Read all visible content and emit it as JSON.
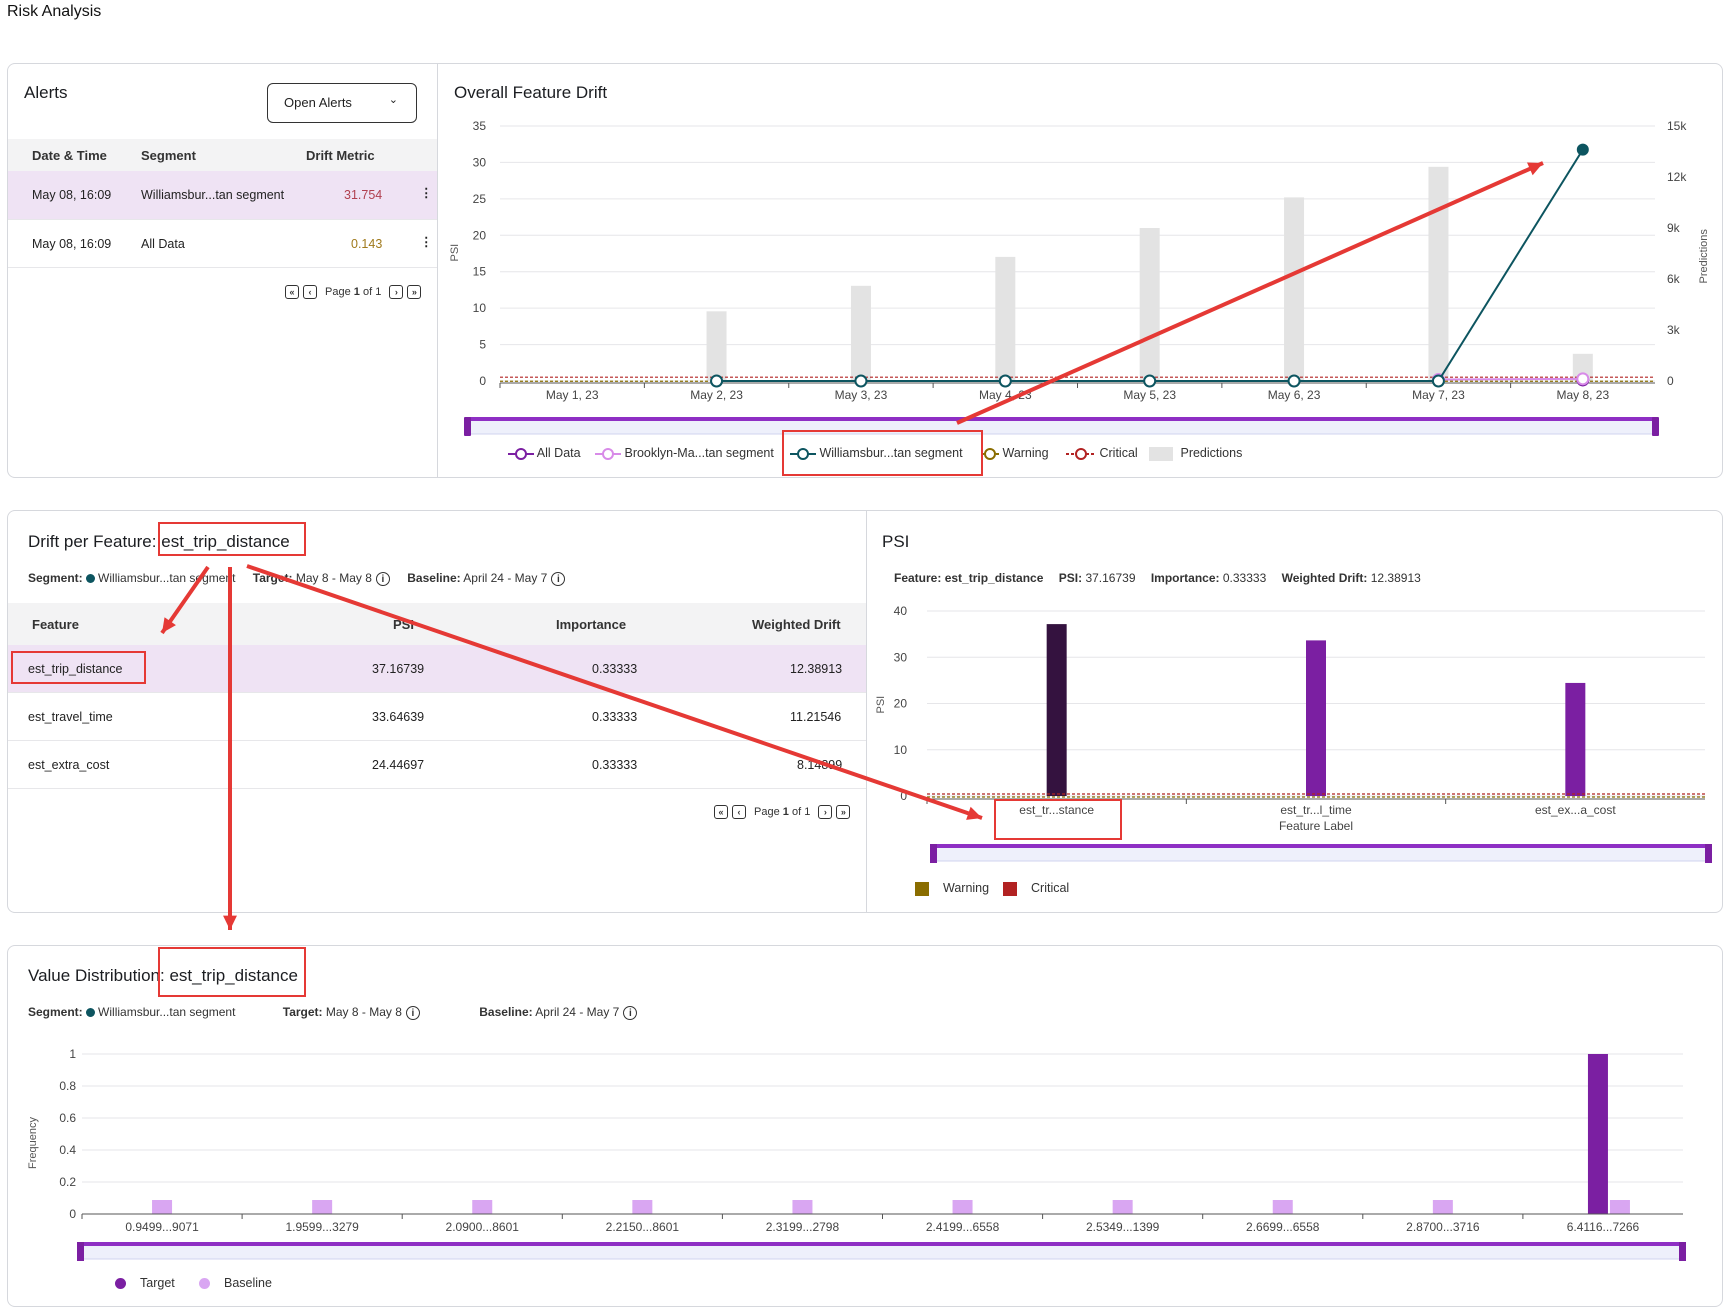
{
  "page": {
    "title": "Risk Analysis"
  },
  "alerts": {
    "title": "Alerts",
    "dropdown": "Open Alerts",
    "columns": [
      "Date & Time",
      "Segment",
      "Drift Metric"
    ],
    "rows": [
      {
        "date": "May 08, 16:09",
        "segment": "Williamsbur...tan segment",
        "metric": "31.754",
        "metric_color": "#b0404f"
      },
      {
        "date": "May 08, 16:09",
        "segment": "All Data",
        "metric": "0.143",
        "metric_color": "#a07a1c"
      }
    ],
    "pager": {
      "prefix": "Page",
      "current": "1",
      "sep": "of",
      "total": "1"
    }
  },
  "drift_chart": {
    "title": "Overall Feature Drift",
    "y_label": "PSI",
    "y2_label": "Predictions",
    "y_ticks": [
      "35",
      "30",
      "25",
      "20",
      "15",
      "10",
      "5",
      "0"
    ],
    "y2_ticks": [
      "15k",
      "12k",
      "9k",
      "6k",
      "3k",
      "0"
    ],
    "x_ticks": [
      "May 1, 23",
      "May 2, 23",
      "May 3, 23",
      "May 4, 23",
      "May 5, 23",
      "May 6, 23",
      "May 7, 23",
      "May 8, 23"
    ],
    "legend": [
      "All Data",
      "Brooklyn-Ma...tan segment",
      "Williamsbur...tan segment",
      "Warning",
      "Critical",
      "Predictions"
    ],
    "colors": {
      "all_data": "#7b1fa2",
      "brooklyn": "#d88be8",
      "williamsburg": "#0d5560",
      "warning": "#8a6d00",
      "critical": "#b22222",
      "predictions": "#e3e3e3"
    }
  },
  "drift_per_feature": {
    "title_prefix": "Drift per Feature:",
    "feature": "est_trip_distance",
    "segment_label": "Segment:",
    "segment": "Williamsbur...tan segment",
    "target_label": "Target:",
    "target": "May 8 - May 8",
    "baseline_label": "Baseline:",
    "baseline": "April 24 - May 7",
    "columns": [
      "Feature",
      "PSI",
      "Importance",
      "Weighted Drift"
    ],
    "rows": [
      {
        "feature": "est_trip_distance",
        "psi": "37.16739",
        "importance": "0.33333",
        "weighted": "12.38913"
      },
      {
        "feature": "est_travel_time",
        "psi": "33.64639",
        "importance": "0.33333",
        "weighted": "11.21546"
      },
      {
        "feature": "est_extra_cost",
        "psi": "24.44697",
        "importance": "0.33333",
        "weighted": "8.14899"
      }
    ],
    "pager": {
      "prefix": "Page",
      "current": "1",
      "sep": "of",
      "total": "1"
    }
  },
  "psi_panel": {
    "title": "PSI",
    "feature_label": "Feature:",
    "feature": "est_trip_distance",
    "psi_label": "PSI:",
    "psi": "37.16739",
    "importance_label": "Importance:",
    "importance": "0.33333",
    "weighted_label": "Weighted Drift:",
    "weighted": "12.38913",
    "legend": [
      "Warning",
      "Critical"
    ],
    "colors": {
      "selected": "#34123f",
      "bar": "#7b1fa2",
      "warning": "#8a6d00",
      "critical": "#b22222"
    }
  },
  "value_dist": {
    "title_prefix": "Value Distribution:",
    "feature": "est_trip_distance",
    "segment_label": "Segment:",
    "segment": "Williamsbur...tan segment",
    "target_label": "Target:",
    "target": "May 8 - May 8",
    "baseline_label": "Baseline:",
    "baseline": "April 24 - May 7",
    "legend": [
      "Target",
      "Baseline"
    ],
    "colors": {
      "target": "#7b1fa2",
      "baseline": "#d9a6f2"
    }
  },
  "chart_data": [
    {
      "type": "bar",
      "title": "Overall Feature Drift",
      "xlabel": "",
      "ylabel": "PSI",
      "y2label": "Predictions",
      "categories": [
        "May 1, 23",
        "May 2, 23",
        "May 3, 23",
        "May 4, 23",
        "May 5, 23",
        "May 6, 23",
        "May 7, 23",
        "May 8, 23"
      ],
      "ylim": [
        0,
        35
      ],
      "y2lim": [
        0,
        15000
      ],
      "series": [
        {
          "name": "Predictions",
          "kind": "bar",
          "axis": "y2",
          "values": [
            null,
            4100,
            5600,
            7300,
            9000,
            10800,
            12600,
            1600
          ]
        },
        {
          "name": "All Data",
          "kind": "line",
          "axis": "y",
          "values": [
            null,
            null,
            null,
            null,
            null,
            null,
            null,
            0.143
          ]
        },
        {
          "name": "Brooklyn-Ma...tan segment",
          "kind": "line",
          "axis": "y",
          "values": [
            null,
            null,
            null,
            null,
            null,
            null,
            0.2,
            0.3
          ]
        },
        {
          "name": "Williamsbur...tan segment",
          "kind": "line",
          "axis": "y",
          "values": [
            null,
            0,
            0,
            0,
            0,
            0,
            0,
            31.754
          ]
        }
      ],
      "thresholds": [
        {
          "name": "Warning",
          "value": 0.1
        },
        {
          "name": "Critical",
          "value": 0.25
        }
      ],
      "legend_position": "bottom"
    },
    {
      "type": "bar",
      "title": "PSI",
      "xlabel": "Feature Label",
      "ylabel": "PSI",
      "categories": [
        "est_tr...stance",
        "est_tr...l_time",
        "est_ex...a_cost"
      ],
      "values": [
        37.16739,
        33.64639,
        24.44697
      ],
      "ylim": [
        0,
        40
      ],
      "y_ticks": [
        "40",
        "30",
        "20",
        "10",
        "0"
      ],
      "thresholds": [
        {
          "name": "Warning",
          "value": 0.1
        },
        {
          "name": "Critical",
          "value": 0.25
        }
      ],
      "legend_position": "bottom-left"
    },
    {
      "type": "bar",
      "title": "Value Distribution: est_trip_distance",
      "xlabel": "",
      "ylabel": "Frequency",
      "categories": [
        "0.9499...9071",
        "1.9599...3279",
        "2.0900...8601",
        "2.2150...8601",
        "2.3199...2798",
        "2.4199...6558",
        "2.5349...1399",
        "2.6699...6558",
        "2.8700...3716",
        "6.4116...7266"
      ],
      "ylim": [
        0,
        1
      ],
      "y_ticks": [
        "1",
        "0.8",
        "0.6",
        "0.4",
        "0.2",
        "0"
      ],
      "series": [
        {
          "name": "Target",
          "values": [
            0,
            0,
            0,
            0,
            0,
            0,
            0,
            0,
            0,
            1
          ]
        },
        {
          "name": "Baseline",
          "values": [
            0.1,
            0.1,
            0.1,
            0.1,
            0.1,
            0.1,
            0.1,
            0.1,
            0.1,
            0.1
          ]
        }
      ],
      "legend_position": "bottom-left"
    }
  ]
}
